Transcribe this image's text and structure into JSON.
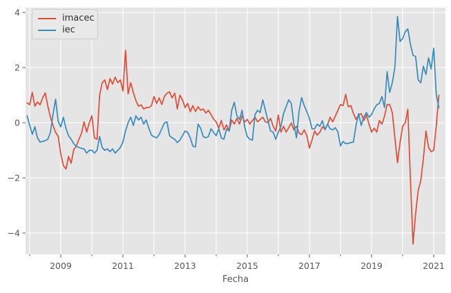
{
  "figure": {
    "background": "#ffffff",
    "plot_background": "#e5e5e5",
    "grid_color": "#ffffff",
    "tick_color": "#555555",
    "label_color": "#555555"
  },
  "chart_data": {
    "type": "line",
    "title": "",
    "xlabel": "Fecha",
    "ylabel": "",
    "grid": true,
    "x_freq": "monthly",
    "x_start": "2007-12",
    "x_end": "2021-03",
    "xlim": [
      2007.867,
      2021.378
    ],
    "ylim": [
      -4.775,
      4.175
    ],
    "x_major_ticks": [
      2009,
      2011,
      2013,
      2015,
      2017,
      2019,
      2021
    ],
    "x_major_tick_labels": [
      "2009",
      "2011",
      "2013",
      "2015",
      "2017",
      "2019",
      "2021"
    ],
    "x_minor_ticks": [
      2008,
      2010,
      2012,
      2014,
      2016,
      2018,
      2020
    ],
    "x_gridline_years": [
      2008,
      2009,
      2010,
      2011,
      2012,
      2013,
      2014,
      2015,
      2016,
      2017,
      2018,
      2019,
      2020,
      2021
    ],
    "y_ticks": [
      -4,
      -2,
      0,
      2,
      4
    ],
    "y_tick_labels": [
      "−4",
      "−2",
      "0",
      "2",
      "4"
    ],
    "legend": {
      "position": "upper-left",
      "entries": [
        {
          "label": "imacec",
          "color": "#e24a33"
        },
        {
          "label": "iec",
          "color": "#348abd"
        }
      ]
    },
    "series": [
      {
        "name": "imacec",
        "color": "#e24a33",
        "values": [
          0.72,
          0.65,
          1.1,
          0.6,
          0.75,
          0.65,
          0.9,
          1.08,
          0.6,
          0.2,
          -0.1,
          -0.35,
          -0.5,
          -1.13,
          -1.55,
          -1.68,
          -1.22,
          -1.47,
          -0.97,
          -0.85,
          -0.6,
          -0.38,
          0.03,
          -0.34,
          0.0,
          0.25,
          -0.55,
          -0.6,
          1.0,
          1.45,
          1.55,
          1.2,
          1.6,
          1.4,
          1.65,
          1.45,
          1.55,
          1.15,
          2.63,
          1.05,
          1.45,
          1.1,
          0.8,
          0.6,
          0.65,
          0.5,
          0.55,
          0.55,
          0.62,
          0.95,
          0.7,
          0.9,
          0.66,
          0.95,
          1.07,
          1.12,
          0.9,
          1.07,
          0.5,
          1.0,
          0.82,
          0.55,
          0.7,
          0.4,
          0.62,
          0.41,
          0.58,
          0.45,
          0.5,
          0.35,
          0.45,
          0.3,
          0.13,
          0.03,
          -0.2,
          0.08,
          -0.26,
          -0.08,
          -0.3,
          0.1,
          -0.05,
          0.16,
          -0.05,
          0.25,
          0.03,
          0.12,
          -0.05,
          0.08,
          0.2,
          0.03,
          0.12,
          0.2,
          0.03,
          0.0,
          0.16,
          -0.13,
          -0.3,
          0.28,
          -0.34,
          -0.13,
          -0.34,
          -0.18,
          -0.01,
          -0.26,
          -0.13,
          -0.38,
          -0.43,
          -0.26,
          -0.47,
          -0.92,
          -0.63,
          -0.3,
          -0.45,
          -0.35,
          -0.15,
          -0.22,
          -0.08,
          0.2,
          0.03,
          0.24,
          0.45,
          0.66,
          0.62,
          1.03,
          0.58,
          0.62,
          0.33,
          0.12,
          0.28,
          0.33,
          0.08,
          0.28,
          -0.05,
          -0.34,
          -0.2,
          -0.34,
          0.08,
          -0.05,
          0.24,
          0.66,
          0.66,
          0.37,
          -0.55,
          -1.45,
          -0.72,
          -0.13,
          0.0,
          0.49,
          -2.05,
          -4.4,
          -3.3,
          -2.45,
          -2.1,
          -1.3,
          -0.3,
          -0.9,
          -1.05,
          -1.0,
          -0.1,
          1.0
        ]
      },
      {
        "name": "iec",
        "color": "#348abd",
        "values": [
          0.25,
          -0.1,
          -0.42,
          -0.15,
          -0.55,
          -0.7,
          -0.68,
          -0.65,
          -0.6,
          -0.35,
          0.3,
          0.85,
          0.05,
          -0.15,
          0.2,
          -0.2,
          -0.47,
          -0.6,
          -0.76,
          -0.85,
          -0.9,
          -0.93,
          -0.95,
          -1.1,
          -1.0,
          -1.0,
          -1.1,
          -1.0,
          -0.5,
          -0.9,
          -1.0,
          -0.95,
          -1.05,
          -0.95,
          -1.1,
          -1.0,
          -0.9,
          -0.7,
          -0.3,
          0.0,
          0.2,
          -0.1,
          0.25,
          0.1,
          0.2,
          -0.05,
          0.1,
          -0.2,
          -0.45,
          -0.51,
          -0.55,
          -0.43,
          -0.22,
          -0.01,
          0.03,
          -0.47,
          -0.55,
          -0.6,
          -0.72,
          -0.63,
          -0.47,
          -0.3,
          -0.35,
          -0.55,
          -0.85,
          -0.88,
          -0.05,
          -0.2,
          -0.5,
          -0.55,
          -0.5,
          -0.22,
          -0.35,
          -0.47,
          -0.22,
          -0.55,
          -0.6,
          -0.22,
          -0.3,
          0.45,
          0.74,
          0.25,
          0.12,
          0.45,
          -0.15,
          -0.5,
          -0.6,
          -0.63,
          0.3,
          0.45,
          0.37,
          0.83,
          0.45,
          0.08,
          -0.3,
          -0.34,
          -0.6,
          -0.34,
          -0.13,
          0.33,
          0.58,
          0.83,
          0.7,
          -0.05,
          -0.55,
          0.41,
          0.91,
          0.62,
          0.4,
          0.16,
          -0.22,
          -0.22,
          -0.05,
          -0.13,
          0.07,
          -0.26,
          -0.05,
          -0.22,
          -0.26,
          -0.18,
          -0.34,
          -0.84,
          -0.68,
          -0.76,
          -0.75,
          -0.72,
          -0.7,
          -0.1,
          0.33,
          -0.1,
          0.2,
          0.37,
          0.2,
          0.3,
          0.5,
          0.65,
          0.7,
          0.95,
          0.55,
          1.85,
          1.1,
          1.45,
          2.0,
          3.85,
          2.95,
          3.05,
          3.3,
          3.4,
          2.85,
          2.45,
          2.4,
          1.55,
          1.45,
          2.05,
          1.75,
          2.35,
          1.95,
          2.7,
          1.0,
          0.55
        ]
      }
    ]
  }
}
